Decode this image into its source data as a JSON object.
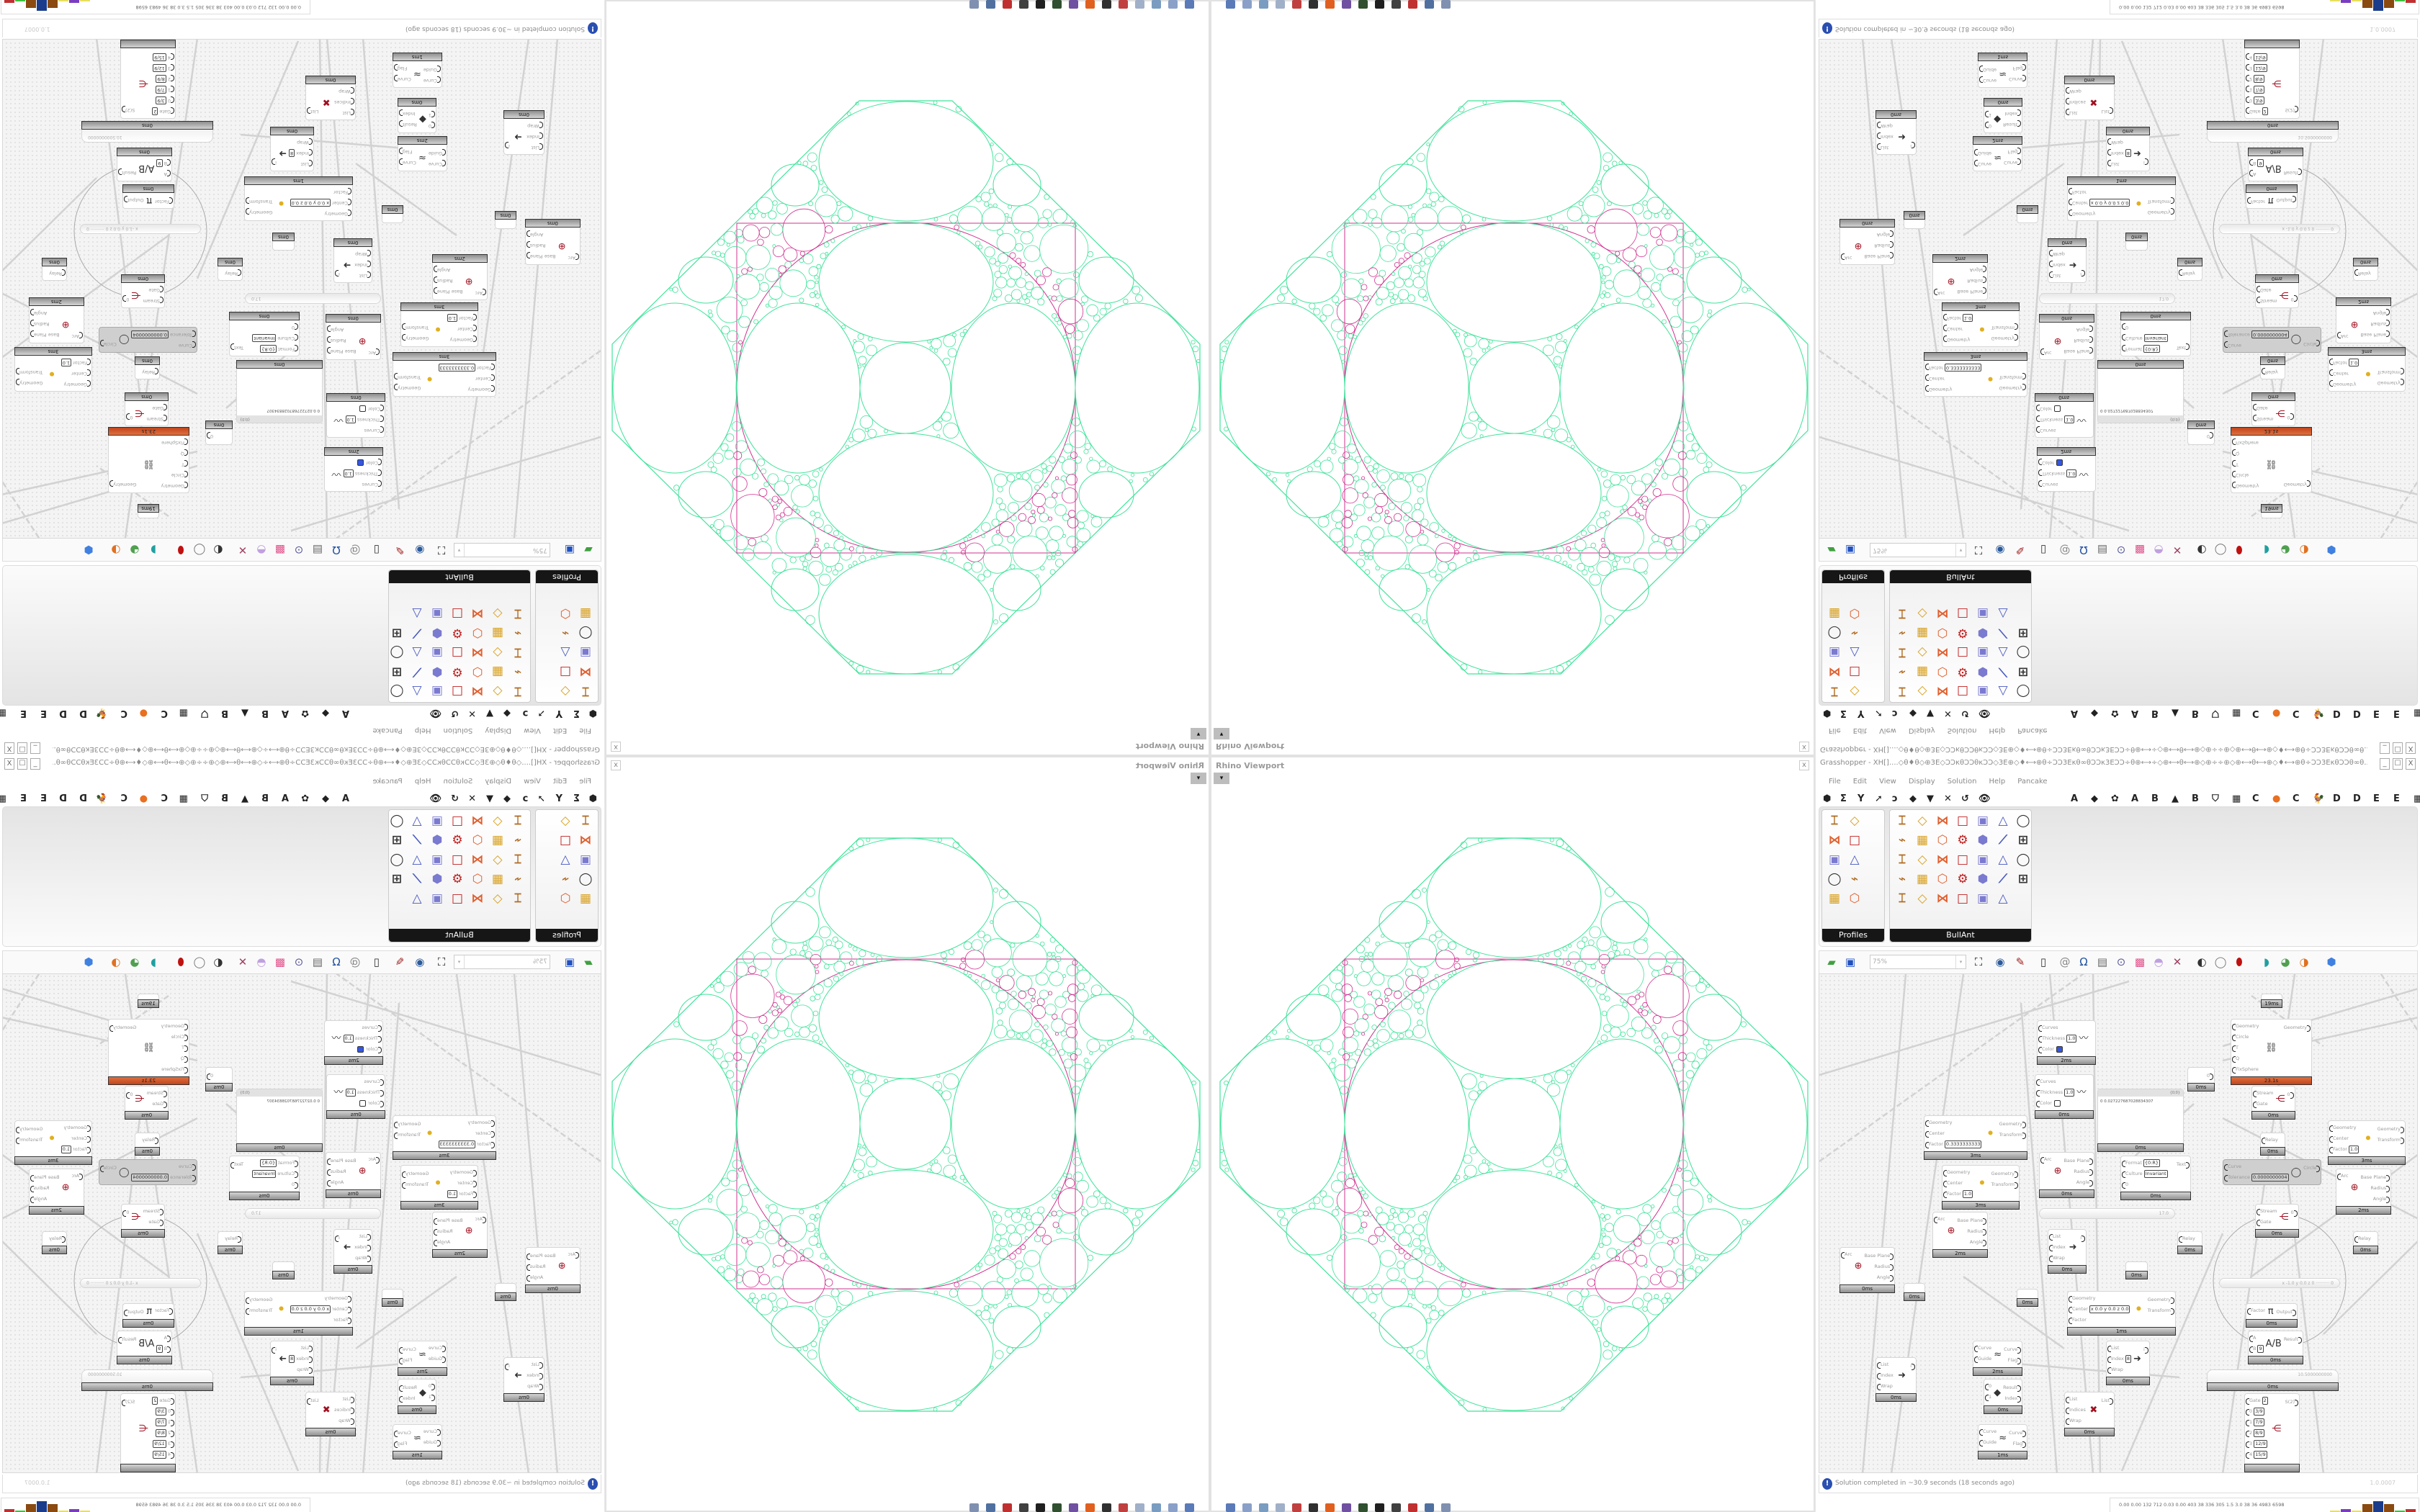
{
  "viewport": {
    "title": "Rhino Viewport",
    "close_label": "x",
    "dropdown_label": "▾",
    "stroke_colors": {
      "packing": "#3fe39a",
      "frame": "#d0308f"
    }
  },
  "grasshopper": {
    "title": "Grasshopper - XH[]....◇θ♦θ◇⊕3E◇ƆƆκθƆƆθκƆƆ◇3E⊕◇♦⟷⊕θ÷ƆƆ3Eκθ∞θƆƆκ3EƆƆ÷θ⊕⟷÷◇⊕⟷θ⟷⊕◇⊕÷÷⊕◇⊕⟷θ⟷⊕◇♦⟷⊕θ÷ƆƆ3EκθƆƆθ∞θ...",
    "window_buttons": [
      "_",
      "☐",
      "X"
    ],
    "menu": [
      "File",
      "Edit",
      "View",
      "Display",
      "Solution",
      "Help",
      "Pancake"
    ],
    "tab_icons_left": [
      {
        "name": "params-icon",
        "glyph": "⬢"
      },
      {
        "name": "maths-icon",
        "glyph": "Σ"
      },
      {
        "name": "sets-icon",
        "glyph": "Y"
      },
      {
        "name": "vector-icon",
        "glyph": "➚"
      },
      {
        "name": "curve-icon",
        "glyph": "ↄ"
      },
      {
        "name": "surface-icon",
        "glyph": "◆"
      },
      {
        "name": "mesh-icon",
        "glyph": "▼"
      },
      {
        "name": "intersect-icon",
        "glyph": "✕"
      },
      {
        "name": "transform-icon",
        "glyph": "↺"
      },
      {
        "name": "display-icon",
        "glyph": "👁"
      }
    ],
    "tab_icons_right": [
      {
        "name": "tab-a",
        "glyph": "A"
      },
      {
        "name": "crystal-icon",
        "glyph": "◆"
      },
      {
        "name": "cog-icon",
        "glyph": "✿"
      },
      {
        "name": "tab-a2",
        "glyph": "A"
      },
      {
        "name": "tab-b",
        "glyph": "B"
      },
      {
        "name": "mountain-icon",
        "glyph": "▲"
      },
      {
        "name": "tab-b2",
        "glyph": "B"
      },
      {
        "name": "shield-icon",
        "glyph": "⛉"
      },
      {
        "name": "grid-icon",
        "glyph": "▦"
      },
      {
        "name": "tab-c",
        "glyph": "C"
      },
      {
        "name": "orange-dot-icon",
        "glyph": "●"
      },
      {
        "name": "tab-c2",
        "glyph": "C"
      },
      {
        "name": "kangaroo-icon",
        "glyph": "🐓"
      },
      {
        "name": "tab-d",
        "glyph": "D"
      },
      {
        "name": "tab-d2",
        "glyph": "D"
      },
      {
        "name": "tab-e",
        "glyph": "E"
      },
      {
        "name": "tab-e2",
        "glyph": "E"
      },
      {
        "name": "more-tabs-icon",
        "glyph": "▦"
      }
    ],
    "panels": [
      {
        "label": "Profiles",
        "expand": "+"
      },
      {
        "label": "BullAnt",
        "expand": "+"
      }
    ],
    "toolbar": {
      "zoom_value": "75%",
      "zoom_dropdown": "▾",
      "icons": [
        "open-file-icon",
        "save-file-icon",
        "zoom-extents-icon",
        "preview-eye-icon",
        "sketch-pen-icon",
        "bifocals-icon",
        "email-icon",
        "gha-icon",
        "canvas-window-icon",
        "search-icon",
        "package-icon",
        "balloon-icon",
        "wires-icon",
        "preview-off-icon",
        "wireframe-icon",
        "shaded-icon",
        "selected-only-icon",
        "mesh-quality-icon",
        "material-icon",
        "sphere-icon"
      ]
    },
    "canvas": {
      "nodes": [
        {
          "type": "comp",
          "glyph": "〰",
          "inputs": [
            {
              "label": "Curves"
            },
            {
              "label": "Thickness",
              "value": "1.0"
            },
            {
              "label": "Color"
            }
          ],
          "outputs": [],
          "time": "2ms",
          "swatch": "#3557e0"
        },
        {
          "type": "comp",
          "glyph": "〰",
          "inputs": [
            {
              "label": "Curves"
            },
            {
              "label": "Thickness",
              "value": "1.0"
            },
            {
              "label": "Color"
            }
          ],
          "outputs": [],
          "time": "0ms",
          "swatch": "#ffffff"
        },
        {
          "type": "comp",
          "glyph": "⚫",
          "inputs": [
            {
              "label": "Geometry"
            },
            {
              "label": "Center"
            },
            {
              "label": "Factor",
              "value": "0.3333333333"
            }
          ],
          "outputs": [
            {
              "label": "Geometry"
            },
            {
              "label": "Transform"
            }
          ],
          "time": "3ms"
        },
        {
          "type": "comp",
          "glyph": "⚫",
          "inputs": [
            {
              "label": "Geometry"
            },
            {
              "label": "Center"
            },
            {
              "label": "Factor",
              "value": "1.0"
            }
          ],
          "outputs": [
            {
              "label": "Geometry"
            },
            {
              "label": "Transform"
            }
          ],
          "time": "3ms"
        },
        {
          "type": "panel",
          "header": "{0;0}",
          "text": "0  0.027227687028834307",
          "time": "0ms"
        },
        {
          "type": "comp",
          "glyph": "",
          "inputs": [],
          "outputs": [
            {
              "label": "0"
            }
          ],
          "time": "0ms"
        },
        {
          "type": "comp",
          "glyph": "⊕",
          "inputs": [
            {
              "label": "Arc"
            }
          ],
          "outputs": [
            {
              "label": "Base Plane"
            },
            {
              "label": "Radius"
            },
            {
              "label": "Angle"
            }
          ],
          "time": "0ms"
        },
        {
          "type": "comp",
          "glyph": "",
          "inputs": [
            {
              "label": "Format",
              "value": "{0:R}"
            },
            {
              "label": "Culture",
              "value": "Invariant"
            },
            {
              "label": "0"
            }
          ],
          "outputs": [
            {
              "label": "Text"
            }
          ],
          "time": "0ms"
        },
        {
          "type": "slider",
          "value": "17.0"
        },
        {
          "type": "comp",
          "glyph": "⊕",
          "inputs": [
            {
              "label": "Arc"
            }
          ],
          "outputs": [
            {
              "label": "Base Plane"
            },
            {
              "label": "Radius"
            },
            {
              "label": "Angle"
            }
          ],
          "time": "2ms"
        },
        {
          "type": "comp",
          "glyph": "⊕",
          "inputs": [
            {
              "label": "Arc"
            }
          ],
          "outputs": [
            {
              "label": "Base Plane"
            },
            {
              "label": "Radius"
            },
            {
              "label": "Angle"
            }
          ],
          "time": "0ms"
        },
        {
          "type": "comp",
          "glyph": "",
          "inputs": [],
          "outputs": [],
          "time": "0ms"
        },
        {
          "type": "comp",
          "glyph": "",
          "inputs": [],
          "outputs": [],
          "time": "0ms"
        },
        {
          "type": "comp",
          "glyph": "➜",
          "inputs": [
            {
              "label": "List"
            },
            {
              "label": "Index"
            },
            {
              "label": "Wrap"
            }
          ],
          "outputs": [
            {
              "label": "i"
            }
          ],
          "time": "0ms"
        },
        {
          "type": "comp",
          "glyph": "",
          "inputs": [],
          "outputs": [],
          "time": "0ms"
        },
        {
          "type": "comp",
          "glyph": "",
          "inputs": [
            {
              "label": "Relay"
            }
          ],
          "outputs": [],
          "time": "0ms"
        },
        {
          "type": "comp",
          "glyph": "⚫",
          "inputs": [
            {
              "label": "Geometry"
            },
            {
              "label": "Center",
              "value": "x 0.0 y 0.0 z 0.0"
            },
            {
              "label": "Factor"
            }
          ],
          "outputs": [
            {
              "label": "Geometry"
            },
            {
              "label": "Transform"
            }
          ],
          "time": "1ms"
        },
        {
          "type": "comp",
          "glyph": "≈",
          "inputs": [
            {
              "label": "Curve"
            },
            {
              "label": "Guide"
            }
          ],
          "outputs": [
            {
              "label": "Curve"
            },
            {
              "label": "Flag"
            }
          ],
          "time": "2ms"
        },
        {
          "type": "comp",
          "glyph": "➜",
          "inputs": [
            {
              "label": "List"
            },
            {
              "label": "Index"
            },
            {
              "label": "Wrap"
            }
          ],
          "outputs": [
            {
              "label": "i"
            }
          ],
          "time": "0ms"
        },
        {
          "type": "comp",
          "glyph": "◆",
          "inputs": [
            {
              "label": "0"
            },
            {
              "label": "1"
            }
          ],
          "outputs": [
            {
              "label": "Result"
            },
            {
              "label": "Index"
            }
          ],
          "time": "0ms"
        },
        {
          "type": "comp",
          "glyph": "≈",
          "inputs": [
            {
              "label": "Curve"
            },
            {
              "label": "Guide"
            }
          ],
          "outputs": [
            {
              "label": "Curve"
            },
            {
              "label": "Flag"
            }
          ],
          "time": "1ms"
        },
        {
          "type": "comp",
          "glyph": "➜",
          "inputs": [
            {
              "label": "List"
            },
            {
              "label": "Index",
              "value": "8"
            },
            {
              "label": "Wrap"
            }
          ],
          "outputs": [
            {
              "label": "i"
            }
          ],
          "time": "0ms"
        },
        {
          "type": "comp",
          "glyph": "✖",
          "inputs": [
            {
              "label": "List"
            },
            {
              "label": "Indices"
            },
            {
              "label": "Wrap"
            }
          ],
          "outputs": [
            {
              "label": "List"
            }
          ],
          "time": "0ms"
        },
        {
          "type": "comp",
          "glyph": "⛓",
          "inputs": [
            {
              "label": "Geometry"
            },
            {
              "label": "Circle"
            },
            {
              "label": "T"
            },
            {
              "label": "Q"
            },
            {
              "label": "FixSphere"
            }
          ],
          "outputs": [
            {
              "label": "Geometry"
            }
          ],
          "time": "23.1s",
          "orange": true
        },
        {
          "type": "comp",
          "glyph": "",
          "inputs": [],
          "outputs": [],
          "time": "19ms"
        },
        {
          "type": "comp",
          "glyph": "⋲",
          "inputs": [
            {
              "label": "Stream"
            },
            {
              "label": "Gate"
            }
          ],
          "outputs": [
            {
              "label": "0"
            }
          ],
          "time": "0ms"
        },
        {
          "type": "comp",
          "glyph": "",
          "inputs": [
            {
              "label": "Relay"
            }
          ],
          "outputs": [],
          "time": "0ms"
        },
        {
          "type": "comp",
          "glyph": "◯",
          "inputs": [
            {
              "label": "Curve"
            },
            {
              "label": "Tolerance",
              "value": "0.0000000004"
            }
          ],
          "outputs": [
            {
              "label": "Circle"
            }
          ],
          "disabled": true
        },
        {
          "type": "comp",
          "glyph": "⚫",
          "inputs": [
            {
              "label": "Geometry"
            },
            {
              "label": "Center"
            },
            {
              "label": "Factor",
              "value": "1.0"
            }
          ],
          "outputs": [
            {
              "label": "Geometry"
            },
            {
              "label": "Transform"
            }
          ],
          "time": "3ms"
        },
        {
          "type": "comp",
          "glyph": "⊕",
          "inputs": [
            {
              "label": "Arc"
            }
          ],
          "outputs": [
            {
              "label": "Base Plane"
            },
            {
              "label": "Radius"
            },
            {
              "label": "Angle"
            }
          ],
          "time": "2ms"
        },
        {
          "type": "comp",
          "glyph": "⋲",
          "inputs": [
            {
              "label": "Stream"
            },
            {
              "label": "Gate"
            }
          ],
          "outputs": [
            {
              "label": "0"
            }
          ],
          "time": "0ms"
        },
        {
          "type": "comp",
          "glyph": "",
          "inputs": [
            {
              "label": "Relay"
            }
          ],
          "outputs": [],
          "time": "0ms"
        },
        {
          "type": "slider",
          "value": "x -1.0  y 0.0  z 0 ·········· 0"
        },
        {
          "type": "comp",
          "glyph": "π",
          "inputs": [
            {
              "label": "Factor"
            }
          ],
          "outputs": [
            {
              "label": "Output"
            }
          ],
          "time": "0ms"
        },
        {
          "type": "comp",
          "glyph": "A/B",
          "inputs": [
            {
              "label": "A"
            },
            {
              "label": "B",
              "value": "9"
            }
          ],
          "outputs": [
            {
              "label": "Result"
            }
          ],
          "time": "0ms"
        },
        {
          "type": "slider",
          "value": "10.5000000000",
          "time": "0ms"
        },
        {
          "type": "comp",
          "glyph": "⋲",
          "inputs": [
            {
              "label": "Gate",
              "value": "2"
            },
            {
              "label": "0",
              "value": "3/9"
            },
            {
              "label": "1",
              "value": "7/9"
            },
            {
              "label": "2",
              "value": "8/9"
            },
            {
              "label": "3",
              "value": "12/9"
            },
            {
              "label": "4",
              "value": "15/9"
            }
          ],
          "outputs": [
            {
              "label": "S(2)"
            }
          ],
          "time": ""
        }
      ]
    },
    "status": {
      "message": "Solution completed in ~30.9 seconds (18 seconds ago)",
      "version": "1.0.0007",
      "icon": "info-icon"
    }
  },
  "taskbar": {
    "numbers": "0.00 0.00 132 712 0.03 0.00 403 38 336 305 1.5 3.0 38 36 4983 6598",
    "bar_colors": [
      "#e8e060",
      "#7a3cc0",
      "#e8e060",
      "#8a4a10",
      "#1a3c8a",
      "#8a4a10",
      "#40c040",
      "#c03030"
    ]
  }
}
